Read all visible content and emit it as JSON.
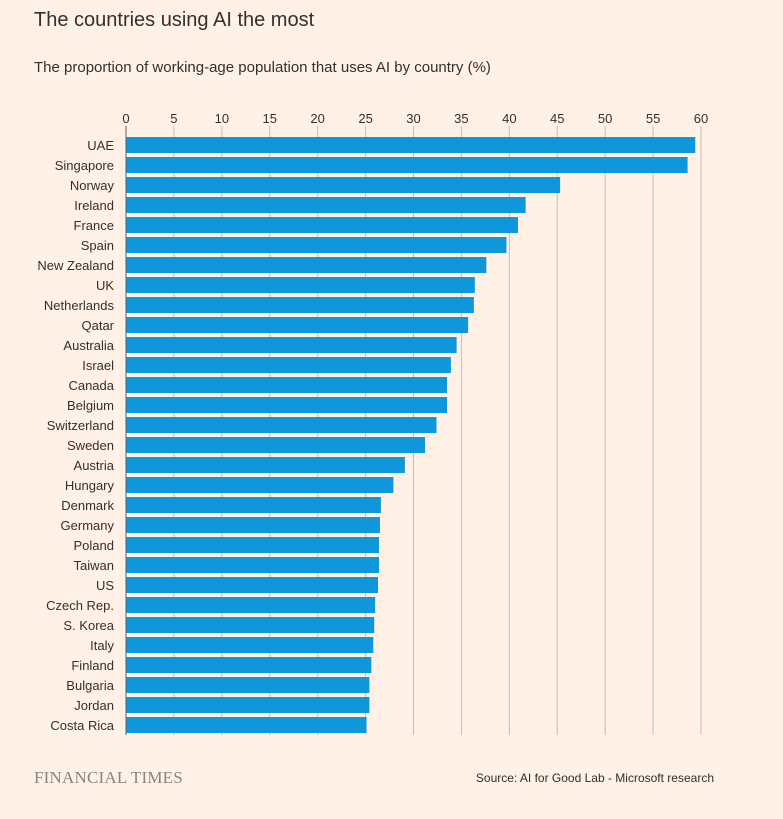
{
  "header": {
    "title": "The countries using AI the most",
    "subtitle": "The proportion of working-age population that uses AI by country (%)"
  },
  "footer": {
    "brand": "FINANCIAL TIMES",
    "source": "Source: AI for Good Lab - Microsoft research"
  },
  "colors": {
    "background": "#fff1e5",
    "bar": "#0f97dc",
    "grid": "#c7bdb4",
    "text": "#33302e"
  },
  "chart_data": {
    "type": "bar",
    "orientation": "horizontal",
    "title": "The countries using AI the most",
    "subtitle": "The proportion of working-age population that uses AI by country (%)",
    "xlim": [
      0,
      60
    ],
    "xticks": [
      0,
      5,
      10,
      15,
      20,
      25,
      30,
      35,
      40,
      45,
      50,
      55,
      60
    ],
    "x_axis_position": "top",
    "grid": "vertical",
    "categories": [
      "UAE",
      "Singapore",
      "Norway",
      "Ireland",
      "France",
      "Spain",
      "New Zealand",
      "UK",
      "Netherlands",
      "Qatar",
      "Australia",
      "Israel",
      "Canada",
      "Belgium",
      "Switzerland",
      "Sweden",
      "Austria",
      "Hungary",
      "Denmark",
      "Germany",
      "Poland",
      "Taiwan",
      "US",
      "Czech Rep.",
      "S. Korea",
      "Italy",
      "Finland",
      "Bulgaria",
      "Jordan",
      "Costa Rica"
    ],
    "values": [
      59.4,
      58.6,
      45.3,
      41.7,
      40.9,
      39.7,
      37.6,
      36.4,
      36.3,
      35.7,
      34.5,
      33.9,
      33.5,
      33.5,
      32.4,
      31.2,
      29.1,
      27.9,
      26.6,
      26.5,
      26.4,
      26.4,
      26.3,
      26.0,
      25.9,
      25.8,
      25.6,
      25.4,
      25.4,
      25.1
    ]
  }
}
